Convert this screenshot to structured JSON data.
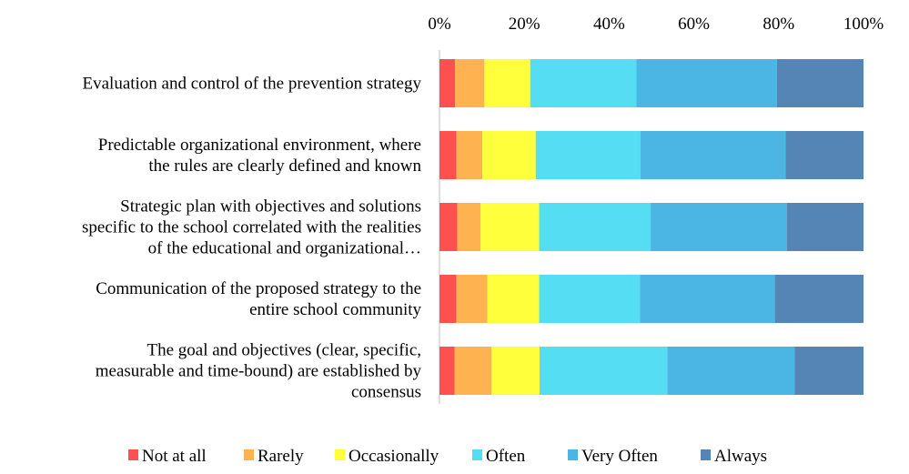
{
  "chart_data": {
    "type": "bar",
    "orientation": "horizontal",
    "stacked": "percent",
    "title": "",
    "xlabel": "",
    "ylabel": "",
    "xlim": [
      0,
      100
    ],
    "x_ticks": [
      "0%",
      "20%",
      "40%",
      "60%",
      "80%",
      "100%"
    ],
    "x_axis_position": "top",
    "grid": false,
    "legend_position": "bottom",
    "categories": [
      [
        "Evaluation and control of the prevention strategy"
      ],
      [
        "Predictable organizational environment, where",
        "the rules are clearly defined and known"
      ],
      [
        "Strategic plan with objectives and solutions",
        "specific to the school correlated with the realities",
        "of the educational and organizational…"
      ],
      [
        "Communication of the proposed strategy to the",
        "entire school community"
      ],
      [
        "The goal and objectives (clear, specific,",
        "measurable and time-bound) are established by",
        "consensus"
      ]
    ],
    "series": [
      {
        "name": "Not at all",
        "color": "#FF5050",
        "values": [
          3.7,
          4.0,
          4.2,
          4.0,
          3.6
        ]
      },
      {
        "name": "Rarely",
        "color": "#FFB350",
        "values": [
          6.9,
          6.1,
          5.5,
          7.3,
          8.7
        ]
      },
      {
        "name": "Occasionally",
        "color": "#FFFF3B",
        "values": [
          10.8,
          12.6,
          13.8,
          12.2,
          11.3
        ]
      },
      {
        "name": "Often",
        "color": "#55DEF3",
        "values": [
          25.0,
          24.7,
          26.3,
          23.8,
          30.1
        ]
      },
      {
        "name": "Very Often",
        "color": "#4BB6E3",
        "values": [
          33.2,
          34.2,
          32.1,
          31.8,
          30.1
        ]
      },
      {
        "name": "Always",
        "color": "#5585B5",
        "values": [
          20.4,
          18.4,
          18.1,
          20.9,
          16.2
        ]
      }
    ]
  }
}
